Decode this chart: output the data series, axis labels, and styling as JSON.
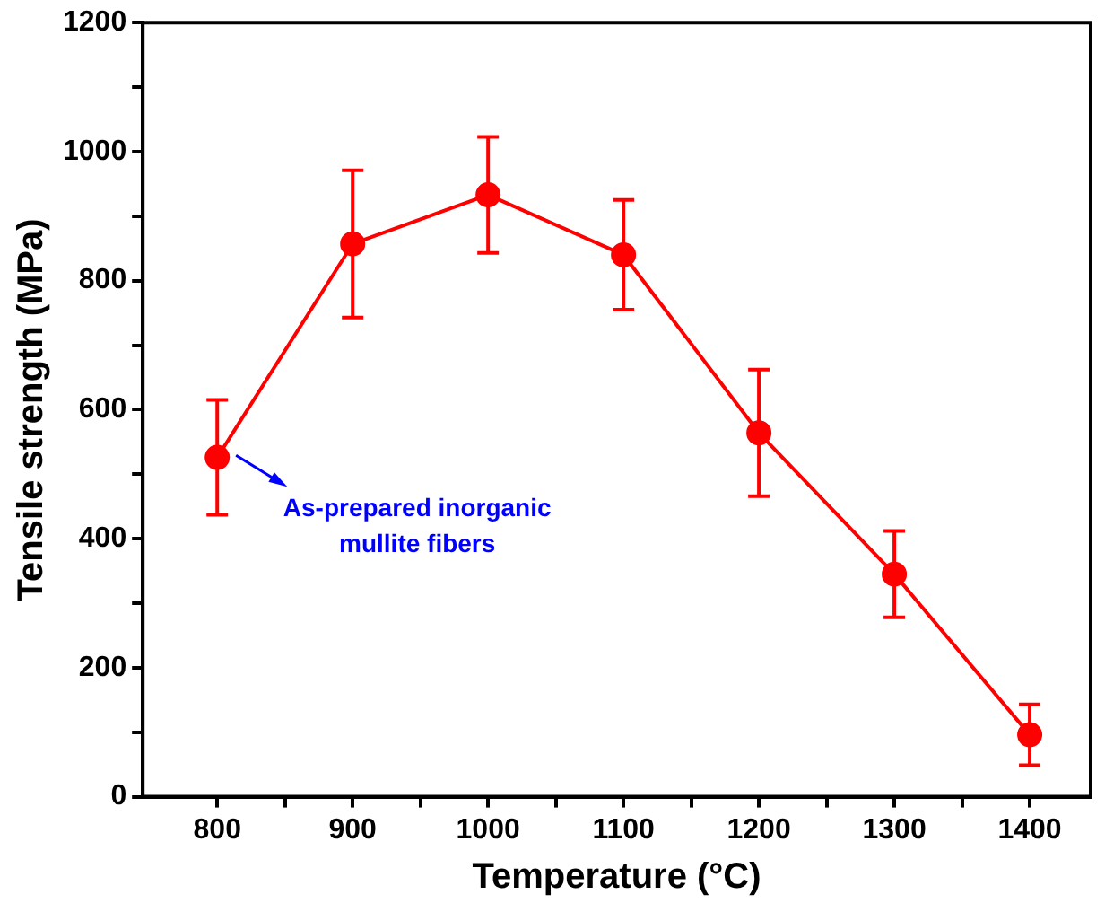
{
  "chart_data": {
    "type": "line",
    "xlabel": "Temperature (°C)",
    "ylabel": "Tensile strength (MPa)",
    "x": [
      800,
      900,
      1000,
      1100,
      1200,
      1300,
      1400
    ],
    "series": [
      {
        "color": "#ff0000",
        "values": [
          526,
          857,
          933,
          840,
          564,
          345,
          96
        ],
        "errors": [
          89,
          114,
          90,
          85,
          98,
          67,
          47
        ]
      }
    ],
    "xlim": [
      745,
      1445
    ],
    "xticks": [
      800,
      {
        "value": 850,
        "label": null
      },
      900,
      {
        "value": 950,
        "label": null
      },
      1000,
      {
        "value": 1050,
        "label": null
      },
      1100,
      {
        "value": 1150,
        "label": null
      },
      1200,
      {
        "value": 1250,
        "label": null
      },
      1300,
      {
        "value": 1350,
        "label": null
      },
      1400
    ],
    "ylim": [
      0,
      1200
    ],
    "yticks": [
      0,
      {
        "value": 100,
        "label": null
      },
      200,
      {
        "value": 300,
        "label": null
      },
      400,
      {
        "value": 500,
        "label": null
      },
      600,
      {
        "value": 700,
        "label": null
      },
      800,
      {
        "value": 900,
        "label": null
      },
      1000,
      {
        "value": 1100,
        "label": null
      },
      1200
    ],
    "annotations": [
      "As-prepared inorganic\nmullite fibers"
    ],
    "grid": false,
    "legend": false,
    "marker": "circle",
    "line_style": "solid"
  }
}
